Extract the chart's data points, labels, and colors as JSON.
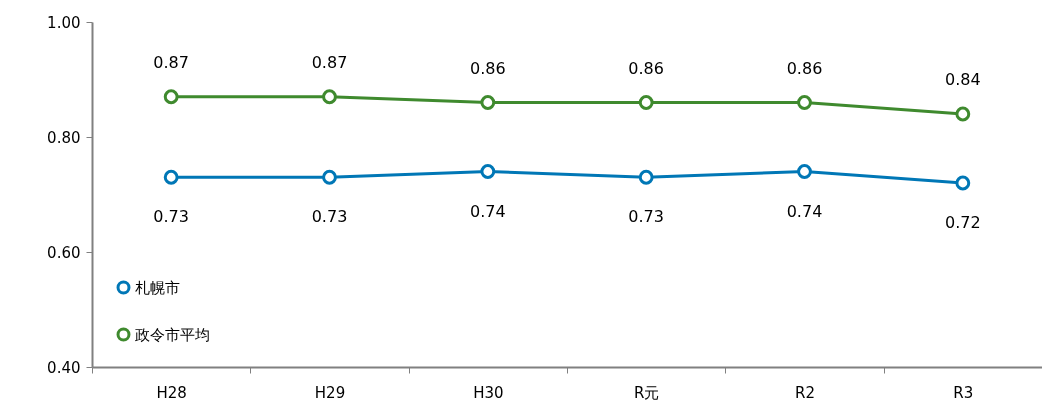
{
  "chart_data": {
    "type": "line",
    "categories": [
      "H28",
      "H29",
      "H30",
      "R元",
      "R2",
      "R3"
    ],
    "series": [
      {
        "name": "札幌市",
        "color": "#0077b6",
        "values": [
          0.73,
          0.73,
          0.74,
          0.73,
          0.74,
          0.72
        ]
      },
      {
        "name": "政令市平均",
        "color": "#3f8a2e",
        "values": [
          0.87,
          0.87,
          0.86,
          0.86,
          0.86,
          0.84
        ]
      }
    ],
    "ylim": [
      0.4,
      1.0
    ],
    "yticks": [
      {
        "value": 0.4,
        "label": "0.40"
      },
      {
        "value": 0.6,
        "label": "0.60"
      },
      {
        "value": 0.8,
        "label": "0.80"
      },
      {
        "value": 1.0,
        "label": "1.00"
      }
    ],
    "data_labels": true,
    "marker": "circle",
    "line_style": "solid",
    "legend": "bottom left"
  }
}
